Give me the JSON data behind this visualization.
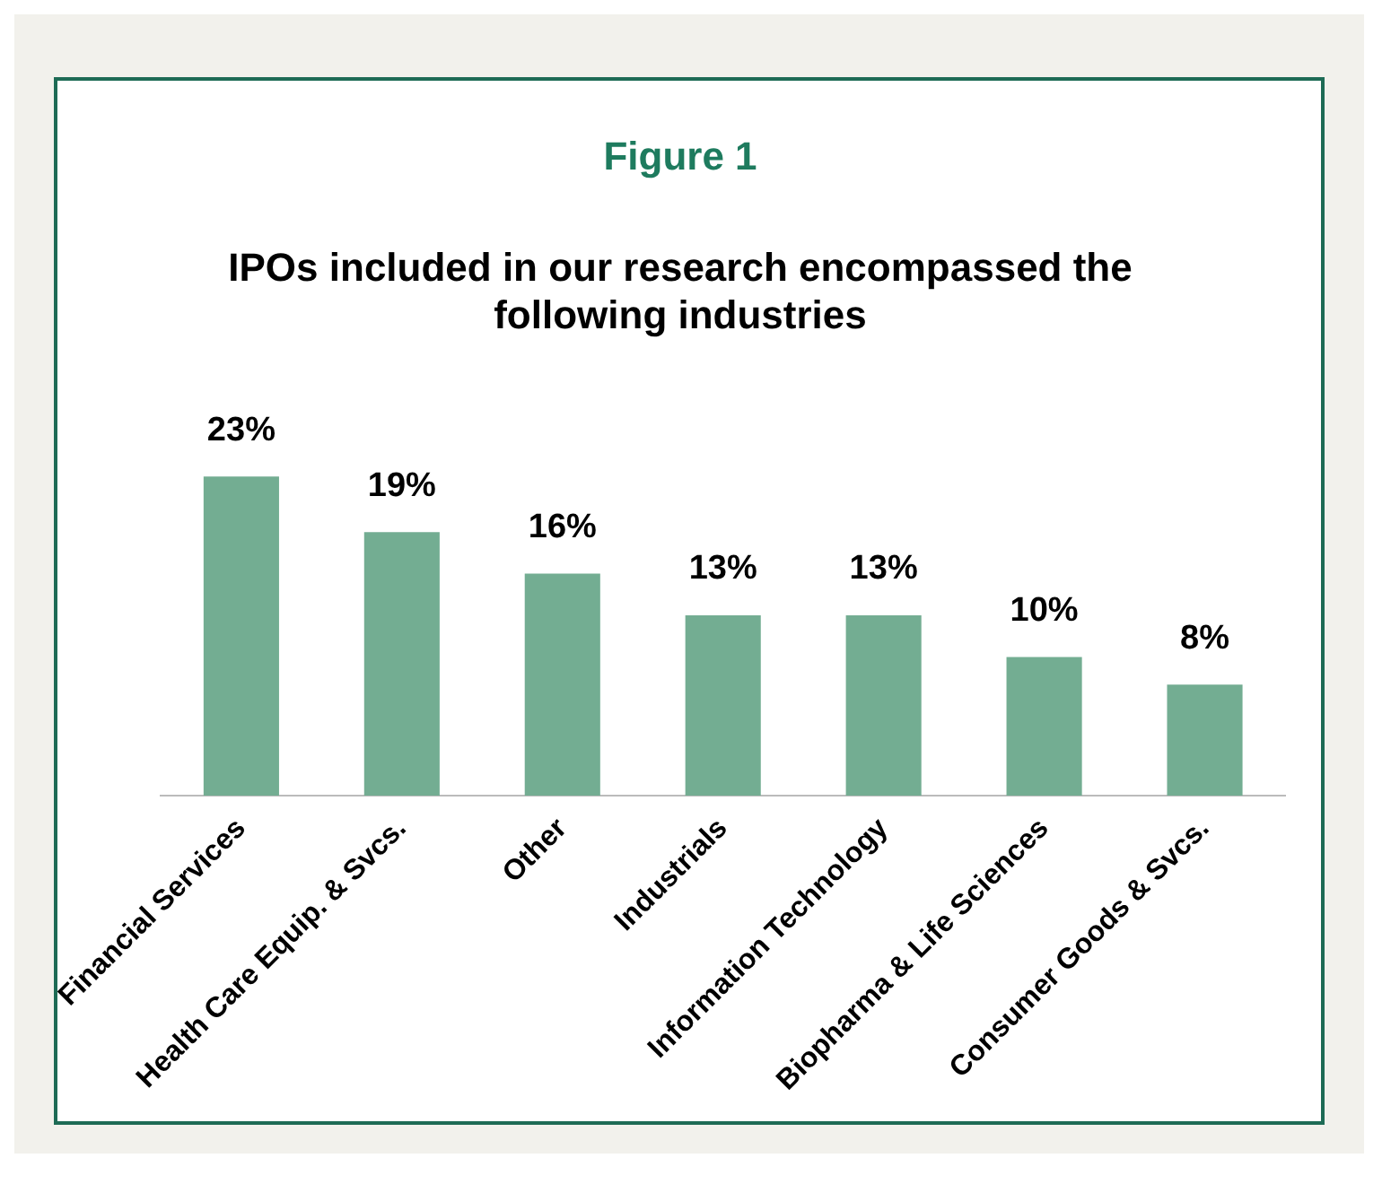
{
  "chart_data": {
    "type": "bar",
    "title": "Figure 1",
    "subtitle": "IPOs included in our research encompassed the following industries",
    "categories": [
      "Financial Services",
      "Health Care Equip. & Svcs.",
      "Other",
      "Industrials",
      "Information Technology",
      "Biopharma & Life Sciences",
      "Consumer Goods & Svcs."
    ],
    "values": [
      23,
      19,
      16,
      13,
      13,
      10,
      8
    ],
    "value_labels": [
      "23%",
      "19%",
      "16%",
      "13%",
      "13%",
      "10%",
      "8%"
    ],
    "color": "#73ad92",
    "grid": false,
    "legend": false,
    "tick_labels": "x"
  }
}
